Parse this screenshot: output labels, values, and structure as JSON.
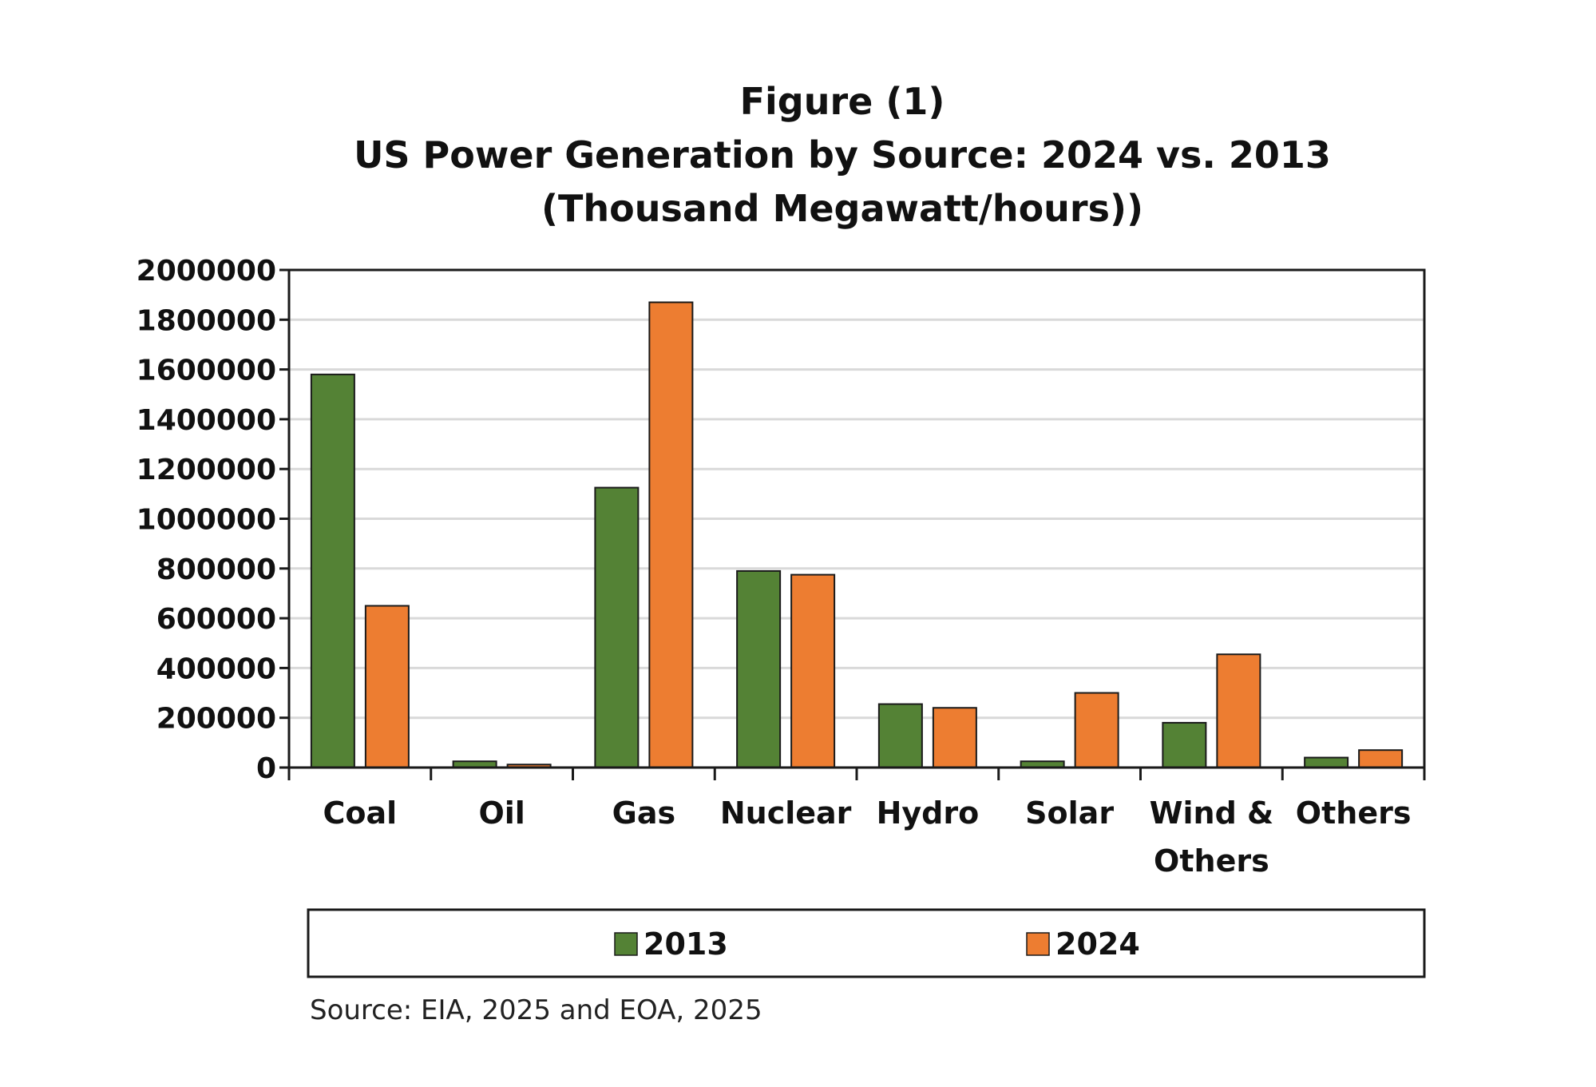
{
  "chart_data": {
    "type": "bar",
    "title_lines": [
      "Figure (1)",
      "US Power Generation by Source: 2024 vs. 2013",
      "(Thousand Megawatt/hours))"
    ],
    "categories": [
      "Coal",
      "Oil",
      "Gas",
      "Nuclear",
      "Hydro",
      "Solar",
      "Wind & Others",
      "Others"
    ],
    "category_lines": [
      [
        "Coal"
      ],
      [
        "Oil"
      ],
      [
        "Gas"
      ],
      [
        "Nuclear"
      ],
      [
        "Hydro"
      ],
      [
        "Solar"
      ],
      [
        "Wind &",
        "Others"
      ],
      [
        "Others"
      ]
    ],
    "series": [
      {
        "name": "2013",
        "values": [
          1580000,
          25000,
          1125000,
          790000,
          255000,
          25000,
          180000,
          40000
        ]
      },
      {
        "name": "2024",
        "values": [
          650000,
          12000,
          1870000,
          775000,
          240000,
          300000,
          455000,
          70000
        ]
      }
    ],
    "ylim": [
      0,
      2000000
    ],
    "yticks": [
      "0",
      "200000",
      "400000",
      "600000",
      "800000",
      "1000000",
      "1200000",
      "1400000",
      "1600000",
      "1800000",
      "2000000"
    ],
    "grid": true,
    "legend_position": "bottom",
    "source": "Source: EIA, 2025 and  EOA, 2025",
    "colors": {
      "2013": "#548235",
      "2024": "#ED7D31",
      "outline": "#1a1a1a",
      "grid": "#d9d9d9"
    }
  }
}
